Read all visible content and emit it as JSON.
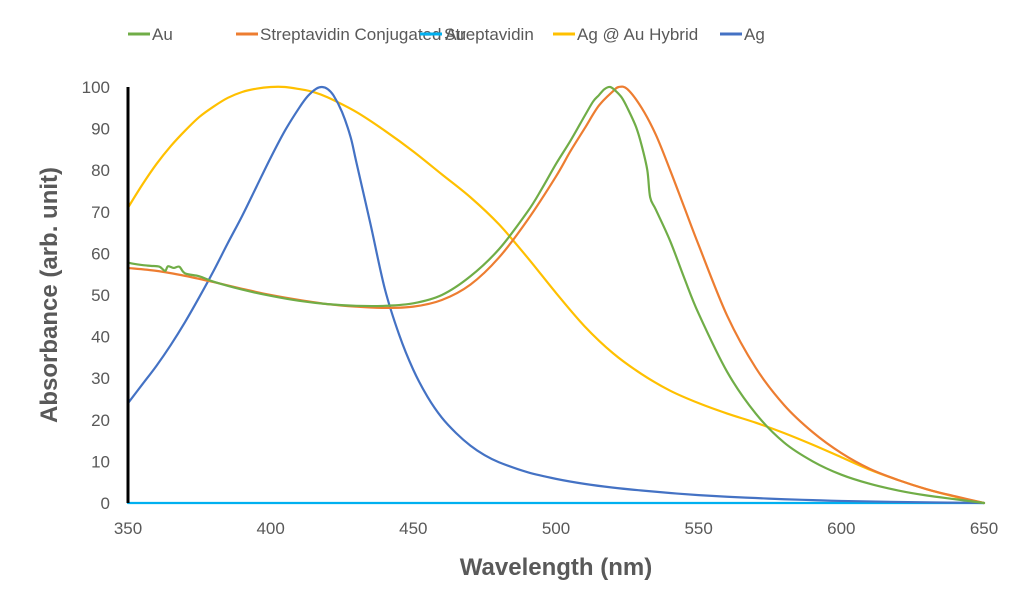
{
  "chart_data": {
    "type": "line",
    "title": "",
    "xlabel": "Wavelength (nm)",
    "ylabel": "Absorbance (arb. unit)",
    "xlim": [
      350,
      650
    ],
    "ylim": [
      0,
      100
    ],
    "xticks": [
      350,
      400,
      450,
      500,
      550,
      600,
      650
    ],
    "yticks": [
      0,
      10,
      20,
      30,
      40,
      50,
      60,
      70,
      80,
      90,
      100
    ],
    "grid": false,
    "legend_position": "top",
    "series": [
      {
        "name": "Au",
        "color": "#70AD47",
        "x": [
          350,
          352,
          355,
          358,
          361,
          363,
          364,
          366,
          368,
          370,
          375,
          380,
          390,
          400,
          410,
          420,
          430,
          440,
          450,
          460,
          470,
          480,
          490,
          495,
          500,
          505,
          510,
          513,
          515,
          517,
          519,
          521,
          523,
          525,
          528,
          530,
          532,
          533,
          535,
          540,
          545,
          550,
          560,
          570,
          580,
          590,
          600,
          610,
          620,
          630,
          640,
          650
        ],
        "values": [
          57.8,
          57.5,
          57.2,
          57.0,
          56.8,
          55.8,
          56.9,
          56.5,
          56.8,
          55.2,
          54.5,
          53.2,
          51.3,
          49.8,
          48.6,
          47.8,
          47.4,
          47.4,
          48.0,
          50.0,
          54.5,
          61.0,
          70.0,
          75.5,
          81.5,
          87.0,
          93.0,
          96.5,
          98.0,
          99.5,
          100.0,
          99.0,
          97.5,
          95.0,
          90.5,
          86.0,
          80.0,
          73.5,
          70.5,
          63.0,
          54.0,
          45.5,
          31.5,
          21.5,
          14.5,
          10.0,
          6.8,
          4.6,
          3.0,
          1.8,
          0.9,
          0.0
        ]
      },
      {
        "name": "Streptavidin Conjugated Au",
        "color": "#ED7D31",
        "x": [
          350,
          360,
          370,
          380,
          390,
          400,
          410,
          420,
          430,
          440,
          450,
          460,
          470,
          480,
          490,
          500,
          505,
          510,
          515,
          520,
          522,
          525,
          530,
          535,
          540,
          545,
          550,
          560,
          570,
          580,
          590,
          600,
          610,
          620,
          630,
          640,
          650
        ],
        "values": [
          56.5,
          55.8,
          54.6,
          53.1,
          51.5,
          50.0,
          48.8,
          47.8,
          47.2,
          46.9,
          47.2,
          48.8,
          52.5,
          59.0,
          68.0,
          78.5,
          84.5,
          90.0,
          95.5,
          99.0,
          100.0,
          99.5,
          95.0,
          88.5,
          80.0,
          71.0,
          62.0,
          45.0,
          32.5,
          23.5,
          17.0,
          12.0,
          8.2,
          5.5,
          3.3,
          1.6,
          0.0
        ]
      },
      {
        "name": "Streptavidin",
        "color": "#00B0F0",
        "x": [
          350,
          400,
          450,
          500,
          550,
          600,
          650
        ],
        "values": [
          0,
          0,
          0,
          0,
          0,
          0,
          0
        ]
      },
      {
        "name": "Ag @ Au Hybrid",
        "color": "#FFC000",
        "x": [
          350,
          355,
          360,
          365,
          370,
          375,
          380,
          385,
          390,
          395,
          400,
          405,
          410,
          415,
          420,
          430,
          440,
          450,
          460,
          470,
          480,
          490,
          500,
          510,
          520,
          530,
          540,
          550,
          560,
          570,
          580,
          590,
          600,
          610,
          620,
          630,
          640,
          650
        ],
        "values": [
          71.0,
          76.5,
          81.5,
          85.8,
          89.5,
          92.8,
          95.3,
          97.4,
          98.8,
          99.6,
          100.0,
          100.0,
          99.5,
          98.8,
          97.5,
          94.0,
          89.5,
          84.5,
          79.0,
          73.5,
          67.0,
          59.0,
          50.5,
          42.5,
          36.0,
          31.0,
          27.0,
          24.0,
          21.5,
          19.3,
          16.8,
          14.0,
          11.0,
          8.0,
          5.5,
          3.3,
          1.5,
          0.0
        ]
      },
      {
        "name": "Ag",
        "color": "#4472C4",
        "x": [
          350,
          355,
          360,
          365,
          370,
          375,
          380,
          385,
          390,
          395,
          400,
          405,
          410,
          413,
          416,
          418,
          420,
          422,
          425,
          428,
          430,
          435,
          440,
          445,
          450,
          455,
          460,
          465,
          470,
          475,
          480,
          490,
          500,
          510,
          520,
          530,
          540,
          550,
          560,
          570,
          580,
          590,
          600,
          620,
          650
        ],
        "values": [
          24.0,
          28.5,
          33.0,
          38.0,
          43.5,
          49.5,
          55.8,
          62.5,
          69.0,
          76.0,
          83.0,
          89.5,
          95.0,
          97.8,
          99.6,
          100.0,
          99.5,
          98.0,
          94.0,
          88.0,
          82.0,
          67.0,
          51.5,
          40.5,
          32.0,
          25.5,
          20.5,
          16.8,
          13.8,
          11.5,
          9.8,
          7.4,
          5.8,
          4.6,
          3.7,
          3.0,
          2.4,
          1.9,
          1.5,
          1.2,
          0.9,
          0.7,
          0.5,
          0.25,
          0.0
        ]
      }
    ]
  }
}
